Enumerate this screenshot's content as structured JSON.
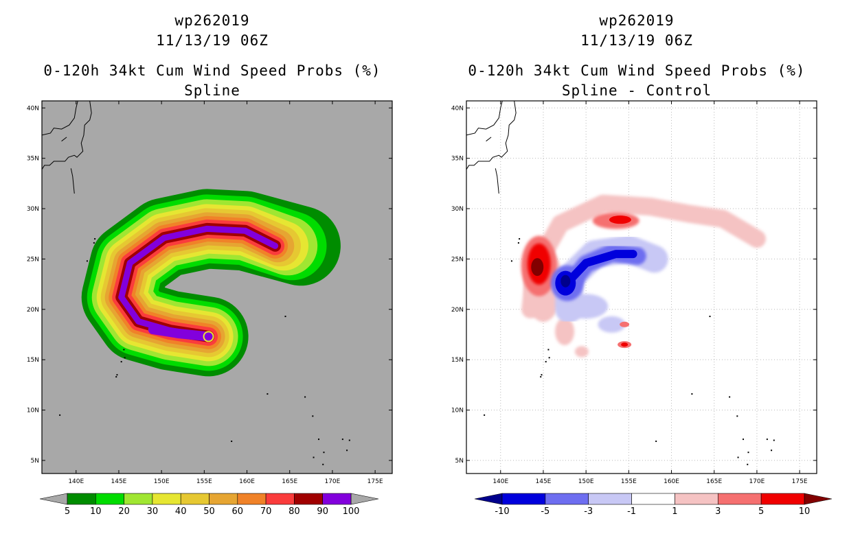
{
  "panels": [
    {
      "storm_id": "wp262019",
      "datetime": "11/13/19 06Z",
      "title": "0-120h 34kt Cum Wind Speed Probs (%)",
      "subtitle": "Spline"
    },
    {
      "storm_id": "wp262019",
      "datetime": "11/13/19 06Z",
      "title": "0-120h 34kt Cum Wind Speed Probs (%)",
      "subtitle": "Spline - Control"
    }
  ],
  "chart_data": [
    {
      "type": "heatmap",
      "title": "0-120h 34kt Cum Wind Speed Probs (%)",
      "subtitle": "Spline",
      "xlim": [
        136,
        177
      ],
      "ylim": [
        3.7,
        40.7
      ],
      "x_ticks": [
        140,
        145,
        150,
        155,
        160,
        165,
        170,
        175
      ],
      "x_tick_labels": [
        "140E",
        "145E",
        "150E",
        "155E",
        "160E",
        "165E",
        "170E",
        "175E"
      ],
      "y_ticks": [
        5,
        10,
        15,
        20,
        25,
        30,
        35,
        40
      ],
      "y_tick_labels": [
        "5N",
        "10N",
        "15N",
        "20N",
        "25N",
        "30N",
        "35N",
        "40N"
      ],
      "background": "#a8a8a8",
      "colorbar": {
        "levels": [
          5,
          10,
          20,
          30,
          40,
          50,
          60,
          70,
          80,
          90,
          100
        ],
        "level_labels": [
          "5",
          "10",
          "20",
          "30",
          "40",
          "50",
          "60",
          "70",
          "80",
          "90",
          "100"
        ],
        "colors": [
          "#008c00",
          "#00dc00",
          "#a0e632",
          "#e6e632",
          "#e6c832",
          "#e6a532",
          "#f08228",
          "#fa3c3c",
          "#a00000",
          "#8200dc"
        ],
        "under_color": "#a8a8a8",
        "over_color": "#a8a8a8"
      },
      "contour_levels": [
        5,
        10,
        20,
        30,
        40,
        50,
        60,
        70,
        80,
        90
      ],
      "swath": {
        "description": "hook-shaped probability swath from storm position near 155.5E 17.3N curving west, north then east",
        "anchor": [
          155.5,
          17.3
        ],
        "track": [
          [
            155.5,
            17.3
          ],
          [
            151,
            17.9
          ],
          [
            147.3,
            18.8
          ],
          [
            145.3,
            21.2
          ],
          [
            146.3,
            24.6
          ],
          [
            150.3,
            27.1
          ],
          [
            155.3,
            28.0
          ],
          [
            159.8,
            27.8
          ],
          [
            163.3,
            26.3
          ]
        ]
      },
      "grid": false,
      "gridlines": false
    },
    {
      "type": "heatmap",
      "title": "0-120h 34kt Cum Wind Speed Probs (%)",
      "subtitle": "Spline - Control",
      "xlim": [
        136,
        177
      ],
      "ylim": [
        3.7,
        40.7
      ],
      "x_ticks": [
        140,
        145,
        150,
        155,
        160,
        165,
        170,
        175
      ],
      "x_tick_labels": [
        "140E",
        "145E",
        "150E",
        "155E",
        "160E",
        "165E",
        "170E",
        "175E"
      ],
      "y_ticks": [
        5,
        10,
        15,
        20,
        25,
        30,
        35,
        40
      ],
      "y_tick_labels": [
        "5N",
        "10N",
        "15N",
        "20N",
        "25N",
        "30N",
        "35N",
        "40N"
      ],
      "background": "#ffffff",
      "colorbar": {
        "levels": [
          -10,
          -5,
          -3,
          -1,
          1,
          3,
          5,
          10
        ],
        "level_labels": [
          "-10",
          "-5",
          "-3",
          "-1",
          "1",
          "3",
          "5",
          "10"
        ],
        "colors": [
          "#0000dc",
          "#6e6ef0",
          "#c8c8f5",
          "#ffffff",
          "#f5c3c3",
          "#f57070",
          "#f00000"
        ],
        "under_color": "#00008c",
        "over_color": "#820000"
      },
      "features": [
        {
          "sign": "positive",
          "max_level": 10,
          "center": [
            144.5,
            24.5
          ]
        },
        {
          "sign": "positive",
          "max_level": 5,
          "center": [
            153.5,
            28.8
          ]
        },
        {
          "sign": "positive",
          "max_level": 5,
          "center": [
            154.5,
            16.5
          ]
        },
        {
          "sign": "negative",
          "max_level": -10,
          "center": [
            147.8,
            22.8
          ]
        },
        {
          "sign": "negative",
          "max_level": -5,
          "center": [
            154.5,
            25.4
          ]
        }
      ],
      "grid": true,
      "gridlines": "dotted"
    }
  ]
}
